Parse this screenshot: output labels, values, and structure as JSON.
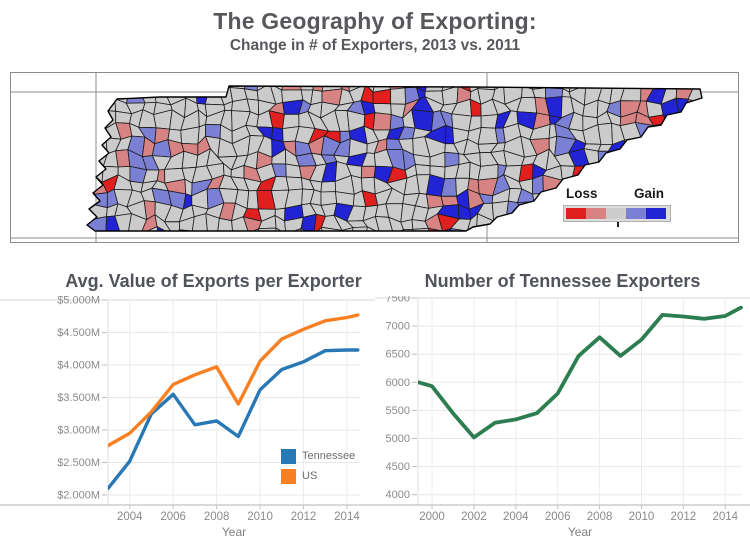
{
  "header": {
    "title": "The Geography of Exporting:",
    "subtitle": "Change in # of Exporters, 2013 vs. 2011"
  },
  "map": {
    "legend": {
      "loss_label": "Loss",
      "gain_label": "Gain",
      "scale": [
        "#e01f1f",
        "#d88383",
        "#cdcdcd",
        "#7b80d4",
        "#2323d6"
      ]
    },
    "no_change_fill": "#cbcbcb",
    "boundary_color": "#1c1c1c",
    "frame_color": "#8c8c8c"
  },
  "chart_data": [
    {
      "type": "line",
      "title": "Avg. Value of Exports per Exporter",
      "xlabel": "Year",
      "x": [
        2003,
        2004,
        2005,
        2006,
        2007,
        2008,
        2009,
        2010,
        2011,
        2012,
        2013,
        2014,
        2014.5
      ],
      "series": [
        {
          "name": "Tennessee",
          "color": "#2878b5",
          "values": [
            2.1,
            2.52,
            3.25,
            3.55,
            3.08,
            3.14,
            2.9,
            3.62,
            3.93,
            4.05,
            4.22,
            4.23,
            4.23
          ]
        },
        {
          "name": "US",
          "color": "#f97f23",
          "values": [
            2.76,
            2.95,
            3.28,
            3.7,
            3.85,
            3.97,
            3.4,
            4.06,
            4.4,
            4.55,
            4.68,
            4.73,
            4.77
          ]
        }
      ],
      "y_tick_values": [
        5.0,
        4.5,
        4.0,
        3.5,
        3.0,
        2.5,
        2.0
      ],
      "y_tick_labels": [
        "$5.000M",
        "$4.500M",
        "$4.000M",
        "$3.500M",
        "$3.000M",
        "$2.500M",
        "$2.000M"
      ],
      "x_tick_values": [
        2004,
        2006,
        2008,
        2010,
        2012,
        2014
      ],
      "x_tick_labels": [
        "2004",
        "2006",
        "2008",
        "2010",
        "2012",
        "2014"
      ],
      "xlim": [
        2003,
        2014.6
      ],
      "ylim": [
        1.85,
        5.0
      ],
      "grid": true,
      "legend_position": "bottom-right"
    },
    {
      "type": "line",
      "title": "Number of Tennessee Exporters",
      "xlabel": "Year",
      "x": [
        1999.35,
        2000,
        2001,
        2002,
        2003,
        2004,
        2005,
        2006,
        2007,
        2008,
        2009,
        2010,
        2011,
        2012,
        2013,
        2014,
        2014.75
      ],
      "series": [
        {
          "name": "Tennessee exporters",
          "color": "#2c7e50",
          "values": [
            6000,
            5930,
            5450,
            5020,
            5280,
            5340,
            5450,
            5800,
            6470,
            6800,
            6470,
            6760,
            7200,
            7170,
            7130,
            7180,
            7330
          ]
        }
      ],
      "y_tick_values": [
        7500,
        7000,
        6500,
        6000,
        5500,
        5000,
        4500,
        4000
      ],
      "y_tick_labels": [
        "7500",
        "7000",
        "6500",
        "6000",
        "5500",
        "5000",
        "4500",
        "4000"
      ],
      "x_tick_values": [
        2000,
        2002,
        2004,
        2006,
        2008,
        2010,
        2012,
        2014
      ],
      "x_tick_labels": [
        "2000",
        "2002",
        "2004",
        "2006",
        "2008",
        "2010",
        "2012",
        "2014"
      ],
      "xlim": [
        1999.33,
        2014.8
      ],
      "ylim": [
        3818,
        7500
      ],
      "grid": true,
      "legend_position": "none"
    }
  ]
}
